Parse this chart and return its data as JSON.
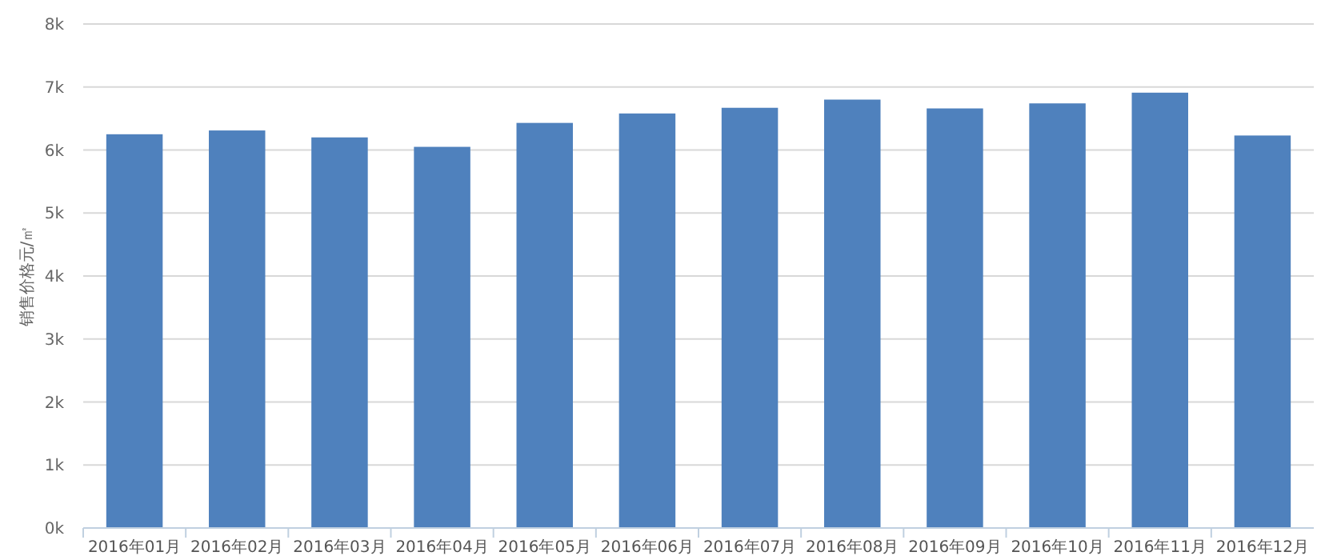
{
  "chart_data": {
    "type": "bar",
    "ylabel": "销售价格元/㎡",
    "categories": [
      "2016年01月",
      "2016年02月",
      "2016年03月",
      "2016年04月",
      "2016年05月",
      "2016年06月",
      "2016年07月",
      "2016年08月",
      "2016年09月",
      "2016年10月",
      "2016年11月",
      "2016年12月"
    ],
    "values": [
      6250,
      6310,
      6200,
      6050,
      6430,
      6580,
      6670,
      6800,
      6660,
      6740,
      6910,
      6230
    ],
    "color": "#4f81bd",
    "ylim": [
      0,
      8000
    ],
    "yticks": [
      {
        "value": 0,
        "label": "0k"
      },
      {
        "value": 1000,
        "label": "1k"
      },
      {
        "value": 2000,
        "label": "2k"
      },
      {
        "value": 3000,
        "label": "3k"
      },
      {
        "value": 4000,
        "label": "4k"
      },
      {
        "value": 5000,
        "label": "5k"
      },
      {
        "value": 6000,
        "label": "6k"
      },
      {
        "value": 7000,
        "label": "7k"
      },
      {
        "value": 8000,
        "label": "8k"
      }
    ],
    "grid": "y"
  }
}
